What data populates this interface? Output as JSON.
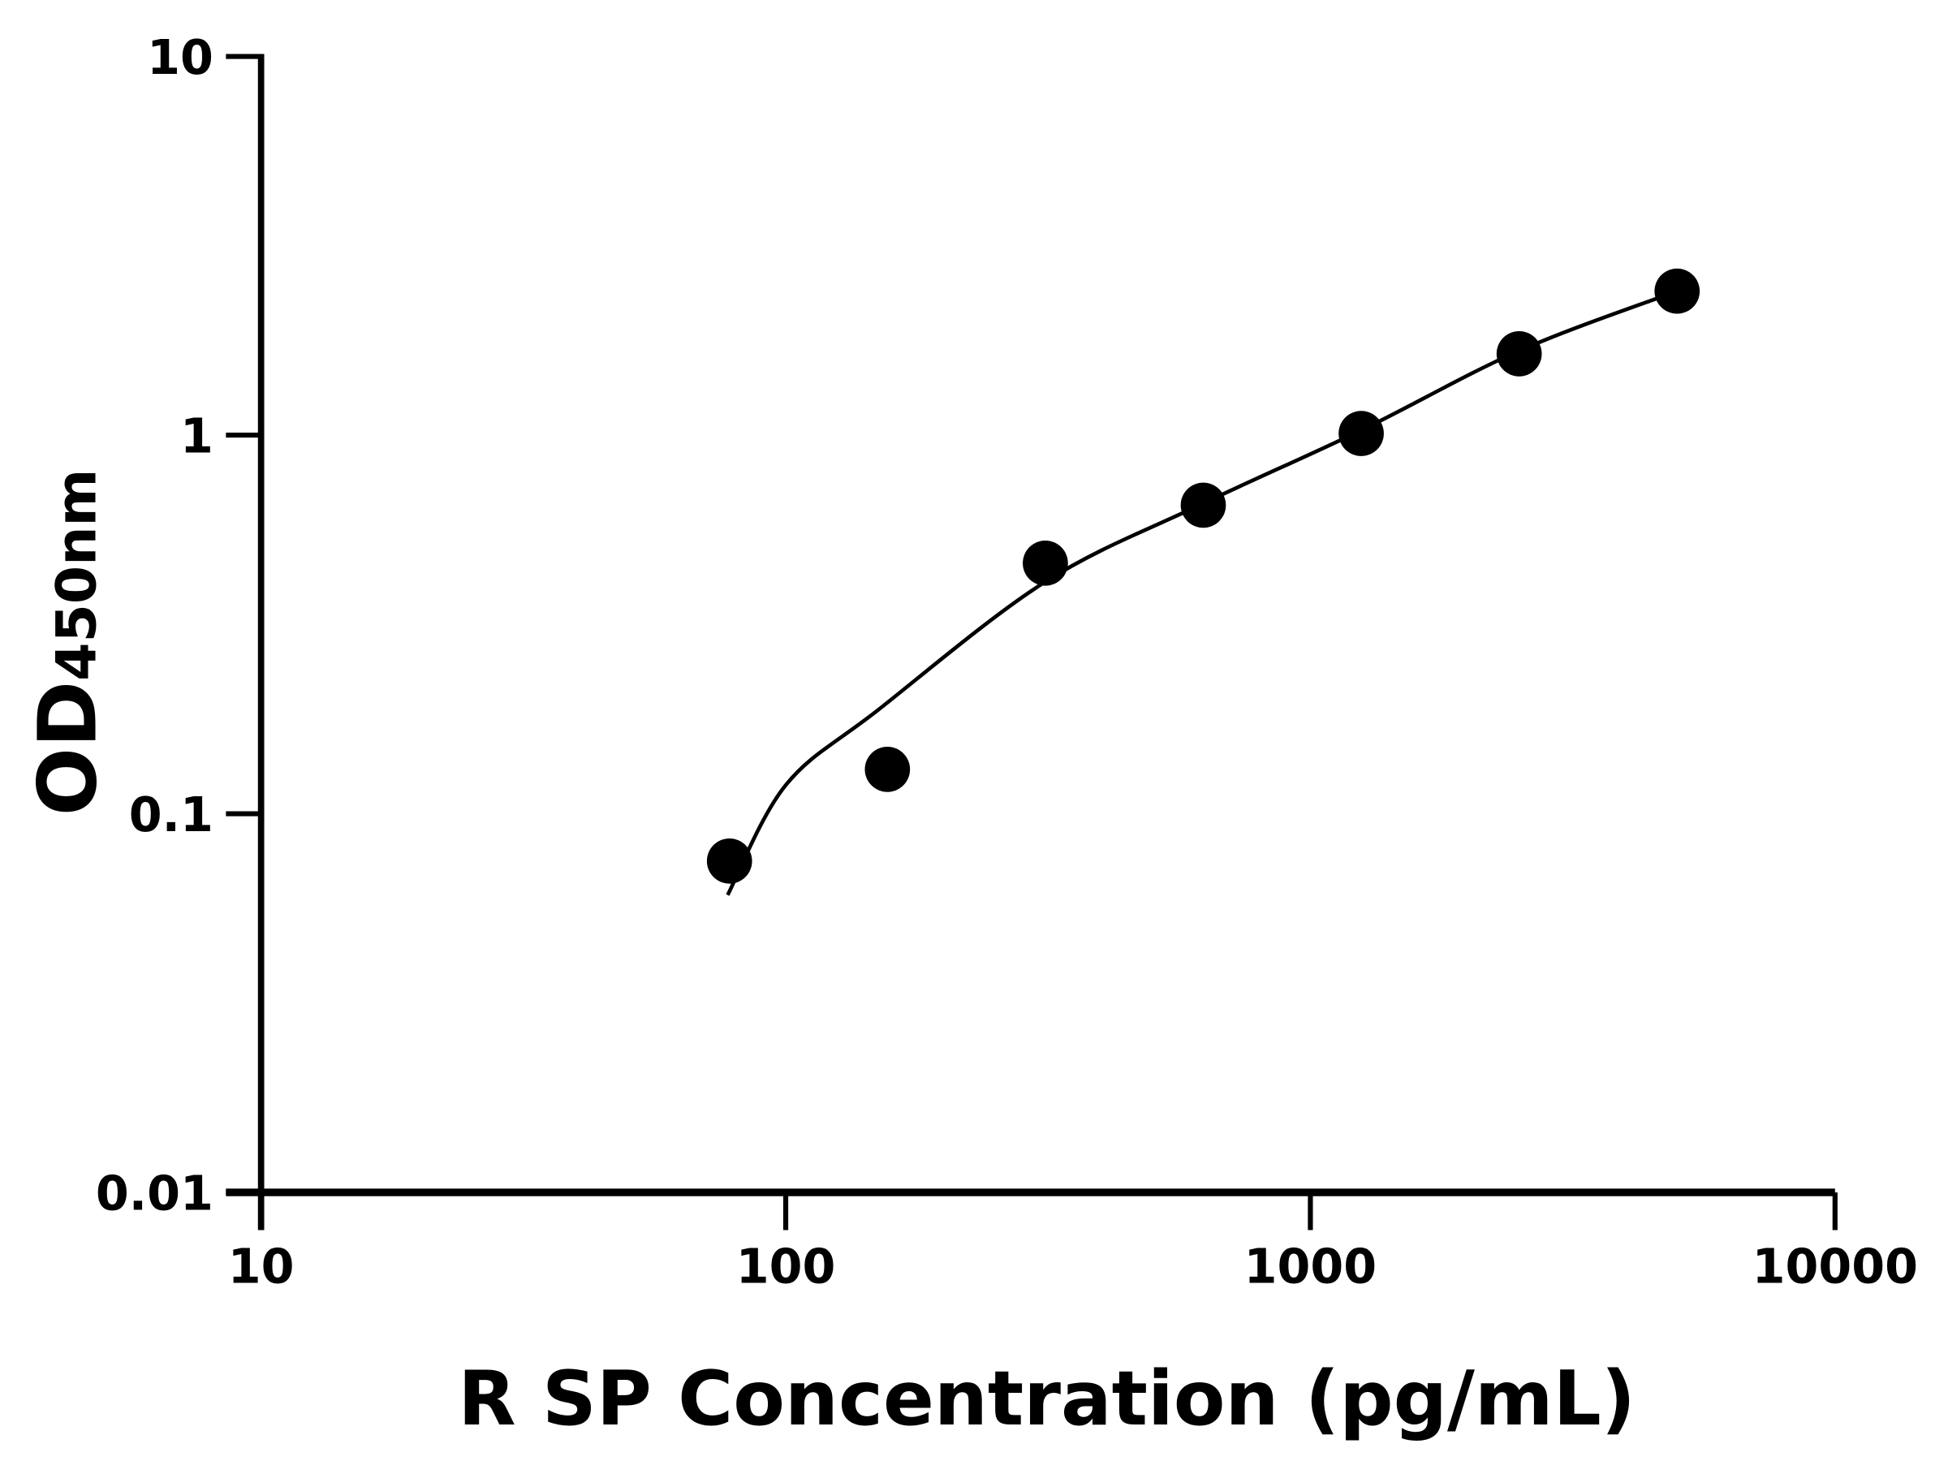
{
  "chart_data": {
    "type": "scatter",
    "title": "",
    "xlabel": "R SP Concentration (pg/mL)",
    "ylabel": "OD",
    "ylabel_subscript": "450nm",
    "xscale": "log",
    "yscale": "log",
    "xlim": [
      10,
      10000
    ],
    "ylim": [
      0.01,
      10
    ],
    "xticks": [
      "10",
      "100",
      "1000",
      "10000"
    ],
    "yticks": [
      "0.01",
      "0.1",
      "1",
      "10"
    ],
    "grid": false,
    "marker_color": "#000000",
    "points": [
      {
        "x": 78.125,
        "y": 0.075
      },
      {
        "x": 156.25,
        "y": 0.131
      },
      {
        "x": 312.5,
        "y": 0.459
      },
      {
        "x": 625,
        "y": 0.653
      },
      {
        "x": 1250,
        "y": 1.01
      },
      {
        "x": 2500,
        "y": 1.64
      },
      {
        "x": 5000,
        "y": 2.4
      }
    ],
    "fit_curve": [
      {
        "x": 77.5,
        "y": 0.061
      },
      {
        "x": 100,
        "y": 0.119
      },
      {
        "x": 150,
        "y": 0.188
      },
      {
        "x": 312.5,
        "y": 0.41
      },
      {
        "x": 625,
        "y": 0.66
      },
      {
        "x": 1250,
        "y": 1.03
      },
      {
        "x": 2500,
        "y": 1.67
      },
      {
        "x": 5000,
        "y": 2.4
      }
    ]
  }
}
